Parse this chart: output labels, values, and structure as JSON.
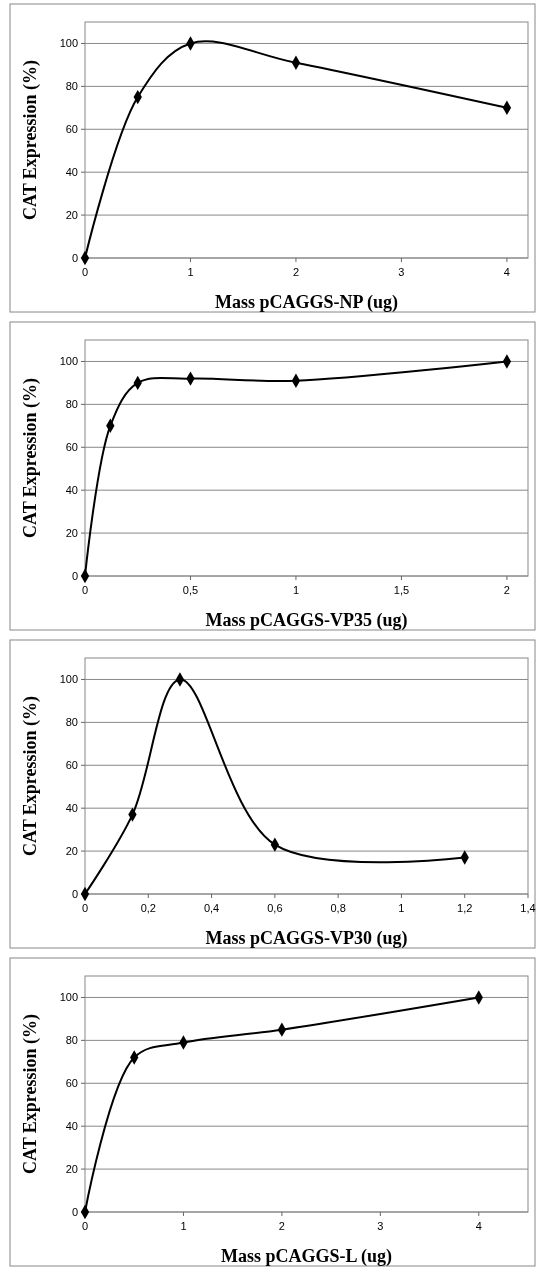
{
  "chart_data": [
    {
      "type": "line",
      "x": [
        0,
        0.5,
        1,
        2,
        4
      ],
      "series": [
        {
          "color": "#000000",
          "values": [
            0,
            75,
            100,
            91,
            70
          ]
        }
      ],
      "xlim": [
        0,
        4.2
      ],
      "ylim": [
        0,
        110
      ],
      "xticks": [
        0,
        1,
        2,
        3,
        4
      ],
      "yticks": [
        0,
        20,
        40,
        60,
        80,
        100
      ],
      "xlabel": "Mass pCAGGS-NP (ug)",
      "ylabel": "CAT Expression (%)",
      "grid": "y",
      "marker": "diamond"
    },
    {
      "type": "line",
      "x": [
        0,
        0.12,
        0.25,
        0.5,
        1,
        2
      ],
      "series": [
        {
          "color": "#000000",
          "values": [
            0,
            70,
            90,
            92,
            91,
            100
          ]
        }
      ],
      "xlim": [
        0,
        2.1
      ],
      "ylim": [
        0,
        110
      ],
      "xticks": [
        0,
        {
          "value": 0.5,
          "label": "0,5"
        },
        1,
        {
          "value": 1.5,
          "label": "1,5"
        },
        2
      ],
      "yticks": [
        0,
        20,
        40,
        60,
        80,
        100
      ],
      "xlabel": "Mass pCAGGS-VP35 (ug)",
      "ylabel": "CAT Expression (%)",
      "grid": "y",
      "marker": "diamond"
    },
    {
      "type": "line",
      "x": [
        0,
        0.15,
        0.3,
        0.6,
        1.2
      ],
      "series": [
        {
          "color": "#000000",
          "values": [
            0,
            37,
            100,
            23,
            17
          ]
        }
      ],
      "xlim": [
        0,
        1.4
      ],
      "ylim": [
        0,
        110
      ],
      "xticks": [
        0,
        {
          "value": 0.2,
          "label": "0,2"
        },
        {
          "value": 0.4,
          "label": "0,4"
        },
        {
          "value": 0.6,
          "label": "0,6"
        },
        {
          "value": 0.8,
          "label": "0,8"
        },
        1,
        {
          "value": 1.2,
          "label": "1,2"
        },
        {
          "value": 1.4,
          "label": "1,4"
        }
      ],
      "yticks": [
        0,
        20,
        40,
        60,
        80,
        100
      ],
      "xlabel": "Mass pCAGGS-VP30 (ug)",
      "ylabel": "CAT Expression (%)",
      "grid": "y",
      "marker": "diamond"
    },
    {
      "type": "line",
      "x": [
        0,
        0.5,
        1,
        2,
        4
      ],
      "series": [
        {
          "color": "#000000",
          "values": [
            0,
            72,
            79,
            85,
            100
          ]
        }
      ],
      "xlim": [
        0,
        4.5
      ],
      "ylim": [
        0,
        110
      ],
      "xticks": [
        0,
        1,
        2,
        3,
        4
      ],
      "yticks": [
        0,
        20,
        40,
        60,
        80,
        100
      ],
      "xlabel": "Mass pCAGGS-L (ug)",
      "ylabel": "CAT Expression (%)",
      "grid": "y",
      "marker": "diamond"
    }
  ]
}
